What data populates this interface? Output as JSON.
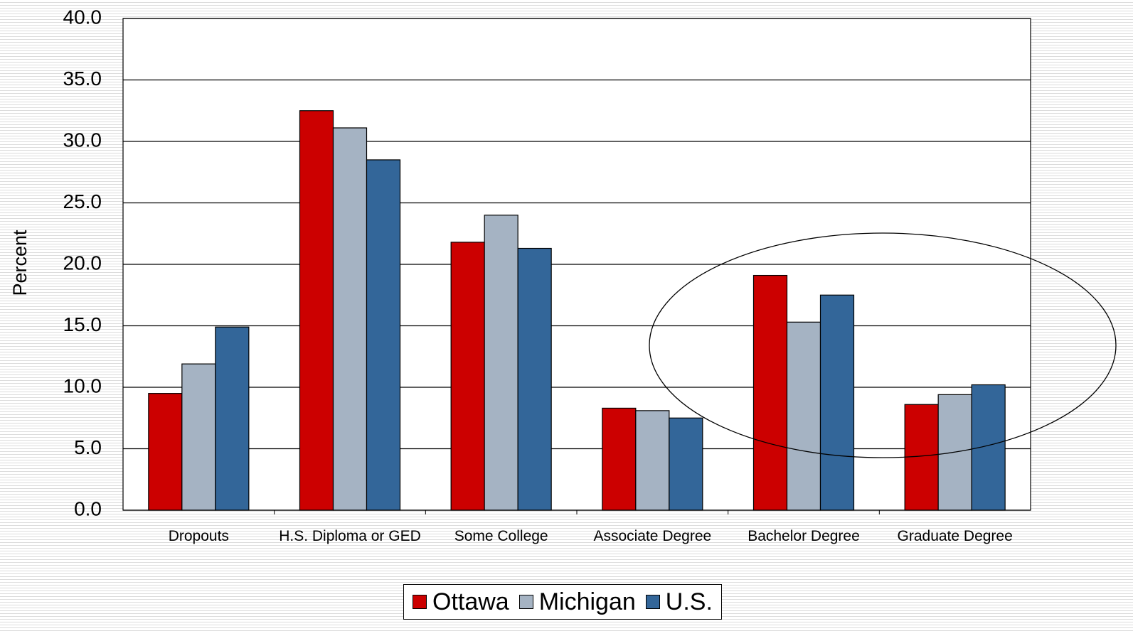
{
  "chart_data": {
    "type": "bar",
    "y_label": "Percent",
    "categories": [
      "Dropouts",
      "H.S. Diploma or GED",
      "Some College",
      "Associate Degree",
      "Bachelor Degree",
      "Graduate Degree"
    ],
    "series": [
      {
        "name": "Ottawa",
        "color": "#cc0000",
        "values": [
          9.5,
          32.5,
          21.8,
          8.3,
          19.1,
          8.6
        ]
      },
      {
        "name": "Michigan",
        "color": "#a5b3c3",
        "values": [
          11.9,
          31.1,
          24.0,
          8.1,
          15.3,
          9.4
        ]
      },
      {
        "name": "U.S.",
        "color": "#336699",
        "values": [
          14.9,
          28.5,
          21.3,
          7.5,
          17.5,
          10.2
        ]
      }
    ],
    "ylim": [
      0,
      40
    ],
    "yticks": [
      {
        "value": 0,
        "label": "0.0"
      },
      {
        "value": 5,
        "label": "5.0"
      },
      {
        "value": 10,
        "label": "10.0"
      },
      {
        "value": 15,
        "label": "15.0"
      },
      {
        "value": 20,
        "label": "20.0"
      },
      {
        "value": 25,
        "label": "25.0"
      },
      {
        "value": 30,
        "label": "30.0"
      },
      {
        "value": 35,
        "label": "35.0"
      },
      {
        "value": 40,
        "label": "40.0"
      }
    ],
    "grid": true,
    "legend": "bottom"
  }
}
